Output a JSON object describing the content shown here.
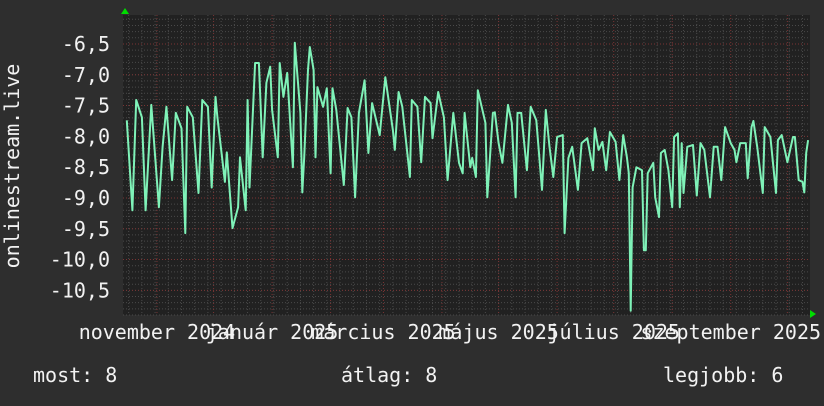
{
  "chart_data": {
    "type": "line",
    "ylabel": "onlinestream.live",
    "xlim": [
      "2024-10-14",
      "2025-10-13"
    ],
    "ylim": [
      -10.9,
      -6.03
    ],
    "grid": true,
    "colors": {
      "background": "#2e2e2e",
      "plot": "#212121",
      "line": "#7ff2b8",
      "major_grid": "#7a3434",
      "minor_grid": "#4a4a4a",
      "arrow": "#00dd00"
    },
    "y_ticks": [
      {
        "value": -6.5,
        "label": "-6,5"
      },
      {
        "value": -7.0,
        "label": "-7,0"
      },
      {
        "value": -7.5,
        "label": "-7,5"
      },
      {
        "value": -8.0,
        "label": "-8,0"
      },
      {
        "value": -8.5,
        "label": "-8,5"
      },
      {
        "value": -9.0,
        "label": "-9,0"
      },
      {
        "value": -9.5,
        "label": "-9,5"
      },
      {
        "value": -10.0,
        "label": "-10,0"
      },
      {
        "value": -10.5,
        "label": "-10,5"
      }
    ],
    "x_ticks": [
      {
        "date": "2024-11-01",
        "label": "november 2024"
      },
      {
        "date": "2025-01-01",
        "label": "január 2025"
      },
      {
        "date": "2025-03-01",
        "label": "március 2025"
      },
      {
        "date": "2025-05-01",
        "label": "május 2025"
      },
      {
        "date": "2025-07-01",
        "label": "július 2025"
      },
      {
        "date": "2025-09-01",
        "label": "szeptember 2025"
      }
    ],
    "series": [
      {
        "points": [
          [
            "2024-10-16",
            -7.74
          ],
          [
            "2024-10-19",
            -9.2
          ],
          [
            "2024-10-21",
            -7.41
          ],
          [
            "2024-10-24",
            -7.69
          ],
          [
            "2024-10-26",
            -9.2
          ],
          [
            "2024-10-29",
            -7.49
          ],
          [
            "2024-11-02",
            -9.15
          ],
          [
            "2024-11-04",
            -8.17
          ],
          [
            "2024-11-06",
            -7.52
          ],
          [
            "2024-11-09",
            -8.71
          ],
          [
            "2024-11-11",
            -7.62
          ],
          [
            "2024-11-14",
            -7.87
          ],
          [
            "2024-11-16",
            -9.57
          ],
          [
            "2024-11-17",
            -7.52
          ],
          [
            "2024-11-20",
            -7.69
          ],
          [
            "2024-11-23",
            -8.92
          ],
          [
            "2024-11-25",
            -7.41
          ],
          [
            "2024-11-28",
            -7.52
          ],
          [
            "2024-11-30",
            -8.83
          ],
          [
            "2024-12-02",
            -7.36
          ],
          [
            "2024-12-03",
            -7.69
          ],
          [
            "2024-12-07",
            -8.74
          ],
          [
            "2024-12-08",
            -8.26
          ],
          [
            "2024-12-11",
            -9.49
          ],
          [
            "2024-12-14",
            -9.15
          ],
          [
            "2024-12-15",
            -8.34
          ],
          [
            "2024-12-18",
            -9.2
          ],
          [
            "2024-12-19",
            -7.41
          ],
          [
            "2024-12-20",
            -8.83
          ],
          [
            "2024-12-23",
            -6.81
          ],
          [
            "2024-12-25",
            -6.81
          ],
          [
            "2024-12-27",
            -8.34
          ],
          [
            "2024-12-29",
            -7.13
          ],
          [
            "2024-12-31",
            -6.87
          ],
          [
            "2025-01-01",
            -7.57
          ],
          [
            "2025-01-04",
            -8.34
          ],
          [
            "2025-01-05",
            -6.81
          ],
          [
            "2025-01-07",
            -7.36
          ],
          [
            "2025-01-09",
            -6.97
          ],
          [
            "2025-01-12",
            -8.5
          ],
          [
            "2025-01-13",
            -6.48
          ],
          [
            "2025-01-16",
            -7.62
          ],
          [
            "2025-01-17",
            -8.91
          ],
          [
            "2025-01-18",
            -8.34
          ],
          [
            "2025-01-20",
            -6.92
          ],
          [
            "2025-01-21",
            -6.55
          ],
          [
            "2025-01-23",
            -6.92
          ],
          [
            "2025-01-24",
            -8.34
          ],
          [
            "2025-01-25",
            -7.2
          ],
          [
            "2025-01-28",
            -7.52
          ],
          [
            "2025-01-30",
            -7.22
          ],
          [
            "2025-02-01",
            -8.6
          ],
          [
            "2025-02-02",
            -7.22
          ],
          [
            "2025-02-04",
            -7.57
          ],
          [
            "2025-02-08",
            -8.79
          ],
          [
            "2025-02-10",
            -7.54
          ],
          [
            "2025-02-12",
            -7.69
          ],
          [
            "2025-02-14",
            -8.99
          ],
          [
            "2025-02-16",
            -7.62
          ],
          [
            "2025-02-19",
            -7.09
          ],
          [
            "2025-02-21",
            -8.27
          ],
          [
            "2025-02-23",
            -7.46
          ],
          [
            "2025-02-27",
            -7.98
          ],
          [
            "2025-03-02",
            -7.04
          ],
          [
            "2025-03-06",
            -7.9
          ],
          [
            "2025-03-07",
            -8.22
          ],
          [
            "2025-03-09",
            -7.28
          ],
          [
            "2025-03-11",
            -7.52
          ],
          [
            "2025-03-15",
            -8.66
          ],
          [
            "2025-03-16",
            -7.41
          ],
          [
            "2025-03-19",
            -7.52
          ],
          [
            "2025-03-21",
            -8.42
          ],
          [
            "2025-03-23",
            -7.36
          ],
          [
            "2025-03-26",
            -7.46
          ],
          [
            "2025-03-27",
            -8.03
          ],
          [
            "2025-03-30",
            -7.28
          ],
          [
            "2025-04-02",
            -7.69
          ],
          [
            "2025-04-04",
            -8.71
          ],
          [
            "2025-04-07",
            -7.62
          ],
          [
            "2025-04-10",
            -8.43
          ],
          [
            "2025-04-12",
            -8.6
          ],
          [
            "2025-04-13",
            -7.62
          ],
          [
            "2025-04-16",
            -8.5
          ],
          [
            "2025-04-17",
            -8.35
          ],
          [
            "2025-04-19",
            -8.66
          ],
          [
            "2025-04-20",
            -7.25
          ],
          [
            "2025-04-24",
            -7.78
          ],
          [
            "2025-04-25",
            -8.99
          ],
          [
            "2025-04-28",
            -7.62
          ],
          [
            "2025-04-29",
            -7.61
          ],
          [
            "2025-05-01",
            -8.11
          ],
          [
            "2025-05-03",
            -8.43
          ],
          [
            "2025-05-06",
            -7.49
          ],
          [
            "2025-05-08",
            -7.78
          ],
          [
            "2025-05-10",
            -8.99
          ],
          [
            "2025-05-11",
            -7.62
          ],
          [
            "2025-05-13",
            -7.62
          ],
          [
            "2025-05-16",
            -8.55
          ],
          [
            "2025-05-18",
            -7.52
          ],
          [
            "2025-05-21",
            -7.74
          ],
          [
            "2025-05-24",
            -8.87
          ],
          [
            "2025-05-26",
            -7.57
          ],
          [
            "2025-05-28",
            -8.17
          ],
          [
            "2025-05-30",
            -8.66
          ],
          [
            "2025-06-01",
            -8.01
          ],
          [
            "2025-06-04",
            -7.98
          ],
          [
            "2025-06-05",
            -9.57
          ],
          [
            "2025-06-07",
            -8.35
          ],
          [
            "2025-06-09",
            -8.17
          ],
          [
            "2025-06-12",
            -8.87
          ],
          [
            "2025-06-14",
            -8.11
          ],
          [
            "2025-06-17",
            -8.03
          ],
          [
            "2025-06-20",
            -8.55
          ],
          [
            "2025-06-21",
            -7.87
          ],
          [
            "2025-06-23",
            -8.22
          ],
          [
            "2025-06-25",
            -8.09
          ],
          [
            "2025-06-27",
            -8.55
          ],
          [
            "2025-06-29",
            -7.93
          ],
          [
            "2025-07-02",
            -8.09
          ],
          [
            "2025-07-04",
            -8.71
          ],
          [
            "2025-07-06",
            -7.98
          ],
          [
            "2025-07-08",
            -8.34
          ],
          [
            "2025-07-09",
            -8.6
          ],
          [
            "2025-07-10",
            -10.83
          ],
          [
            "2025-07-11",
            -8.83
          ],
          [
            "2025-07-13",
            -8.5
          ],
          [
            "2025-07-16",
            -8.55
          ],
          [
            "2025-07-17",
            -9.85
          ],
          [
            "2025-07-18",
            -9.85
          ],
          [
            "2025-07-19",
            -8.6
          ],
          [
            "2025-07-22",
            -8.43
          ],
          [
            "2025-07-23",
            -8.99
          ],
          [
            "2025-07-25",
            -9.31
          ],
          [
            "2025-07-26",
            -8.27
          ],
          [
            "2025-07-28",
            -8.22
          ],
          [
            "2025-07-30",
            -8.55
          ],
          [
            "2025-08-01",
            -9.15
          ],
          [
            "2025-08-02",
            -8.01
          ],
          [
            "2025-08-04",
            -7.95
          ],
          [
            "2025-08-05",
            -9.15
          ],
          [
            "2025-08-06",
            -8.11
          ],
          [
            "2025-08-07",
            -8.92
          ],
          [
            "2025-08-09",
            -8.17
          ],
          [
            "2025-08-12",
            -8.14
          ],
          [
            "2025-08-14",
            -8.96
          ],
          [
            "2025-08-16",
            -8.11
          ],
          [
            "2025-08-18",
            -8.22
          ],
          [
            "2025-08-21",
            -8.99
          ],
          [
            "2025-08-23",
            -8.17
          ],
          [
            "2025-08-25",
            -8.17
          ],
          [
            "2025-08-27",
            -8.71
          ],
          [
            "2025-08-29",
            -7.85
          ],
          [
            "2025-09-01",
            -8.11
          ],
          [
            "2025-09-03",
            -8.22
          ],
          [
            "2025-09-04",
            -8.42
          ],
          [
            "2025-09-06",
            -8.11
          ],
          [
            "2025-09-09",
            -8.11
          ],
          [
            "2025-09-10",
            -8.68
          ],
          [
            "2025-09-12",
            -7.85
          ],
          [
            "2025-09-13",
            -7.75
          ],
          [
            "2025-09-15",
            -8.17
          ],
          [
            "2025-09-18",
            -8.92
          ],
          [
            "2025-09-19",
            -7.85
          ],
          [
            "2025-09-22",
            -8.01
          ],
          [
            "2025-09-25",
            -8.92
          ],
          [
            "2025-09-26",
            -8.06
          ],
          [
            "2025-09-28",
            -7.98
          ],
          [
            "2025-10-01",
            -8.42
          ],
          [
            "2025-10-04",
            -8.01
          ],
          [
            "2025-10-05",
            -8.01
          ],
          [
            "2025-10-07",
            -8.71
          ],
          [
            "2025-10-09",
            -8.74
          ],
          [
            "2025-10-10",
            -8.91
          ],
          [
            "2025-10-11",
            -8.27
          ],
          [
            "2025-10-12",
            -8.06
          ]
        ]
      }
    ]
  },
  "legend": {
    "current": "most: 8",
    "average": "átlag: 8",
    "best": "legjobb: 6"
  }
}
